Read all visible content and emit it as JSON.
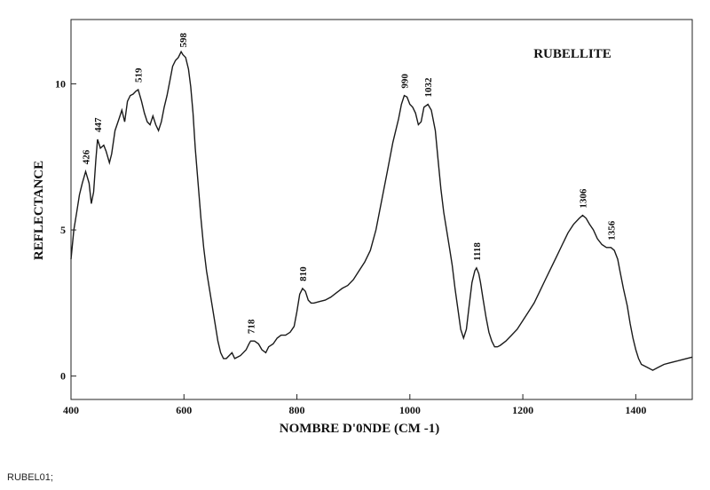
{
  "chart_data": {
    "type": "line",
    "title": "RUBELLITE",
    "xlabel": "NOMBRE D'0NDE (CM -1)",
    "ylabel": "REFLECTANCE",
    "xlim": [
      400,
      1500
    ],
    "ylim": [
      -0.8,
      12.2
    ],
    "xticks": [
      400,
      600,
      800,
      1000,
      1200,
      1400
    ],
    "yticks": [
      0,
      5,
      10
    ],
    "series": [
      {
        "color": "#1a1a1a",
        "points": [
          [
            400,
            4.0
          ],
          [
            405,
            5.0
          ],
          [
            410,
            5.6
          ],
          [
            415,
            6.2
          ],
          [
            420,
            6.6
          ],
          [
            426,
            7.0
          ],
          [
            432,
            6.6
          ],
          [
            436,
            5.9
          ],
          [
            440,
            6.3
          ],
          [
            444,
            7.4
          ],
          [
            447,
            8.1
          ],
          [
            452,
            7.8
          ],
          [
            458,
            7.9
          ],
          [
            462,
            7.7
          ],
          [
            468,
            7.3
          ],
          [
            472,
            7.6
          ],
          [
            478,
            8.4
          ],
          [
            485,
            8.8
          ],
          [
            490,
            9.1
          ],
          [
            495,
            8.7
          ],
          [
            500,
            9.4
          ],
          [
            505,
            9.6
          ],
          [
            510,
            9.65
          ],
          [
            515,
            9.75
          ],
          [
            519,
            9.8
          ],
          [
            525,
            9.4
          ],
          [
            530,
            9.0
          ],
          [
            535,
            8.7
          ],
          [
            540,
            8.6
          ],
          [
            545,
            8.9
          ],
          [
            550,
            8.6
          ],
          [
            555,
            8.4
          ],
          [
            560,
            8.7
          ],
          [
            565,
            9.2
          ],
          [
            570,
            9.6
          ],
          [
            575,
            10.1
          ],
          [
            580,
            10.6
          ],
          [
            585,
            10.8
          ],
          [
            590,
            10.9
          ],
          [
            595,
            11.1
          ],
          [
            598,
            11.0
          ],
          [
            603,
            10.9
          ],
          [
            608,
            10.5
          ],
          [
            612,
            9.9
          ],
          [
            616,
            9.0
          ],
          [
            620,
            7.8
          ],
          [
            625,
            6.6
          ],
          [
            630,
            5.4
          ],
          [
            635,
            4.4
          ],
          [
            640,
            3.6
          ],
          [
            645,
            3.0
          ],
          [
            650,
            2.4
          ],
          [
            655,
            1.8
          ],
          [
            660,
            1.2
          ],
          [
            665,
            0.8
          ],
          [
            670,
            0.6
          ],
          [
            675,
            0.6
          ],
          [
            680,
            0.7
          ],
          [
            685,
            0.8
          ],
          [
            690,
            0.6
          ],
          [
            695,
            0.65
          ],
          [
            700,
            0.7
          ],
          [
            705,
            0.8
          ],
          [
            710,
            0.9
          ],
          [
            715,
            1.1
          ],
          [
            718,
            1.2
          ],
          [
            725,
            1.2
          ],
          [
            732,
            1.1
          ],
          [
            738,
            0.9
          ],
          [
            745,
            0.8
          ],
          [
            750,
            1.0
          ],
          [
            758,
            1.1
          ],
          [
            765,
            1.3
          ],
          [
            772,
            1.4
          ],
          [
            780,
            1.4
          ],
          [
            788,
            1.5
          ],
          [
            795,
            1.7
          ],
          [
            800,
            2.2
          ],
          [
            805,
            2.8
          ],
          [
            810,
            3.0
          ],
          [
            815,
            2.9
          ],
          [
            820,
            2.6
          ],
          [
            825,
            2.5
          ],
          [
            830,
            2.5
          ],
          [
            840,
            2.55
          ],
          [
            850,
            2.6
          ],
          [
            860,
            2.7
          ],
          [
            870,
            2.85
          ],
          [
            880,
            3.0
          ],
          [
            890,
            3.1
          ],
          [
            900,
            3.3
          ],
          [
            910,
            3.6
          ],
          [
            920,
            3.9
          ],
          [
            930,
            4.3
          ],
          [
            940,
            5.0
          ],
          [
            950,
            6.0
          ],
          [
            960,
            7.0
          ],
          [
            970,
            8.0
          ],
          [
            980,
            8.8
          ],
          [
            985,
            9.3
          ],
          [
            990,
            9.6
          ],
          [
            995,
            9.55
          ],
          [
            1000,
            9.3
          ],
          [
            1005,
            9.2
          ],
          [
            1010,
            9.0
          ],
          [
            1015,
            8.6
          ],
          [
            1020,
            8.7
          ],
          [
            1025,
            9.2
          ],
          [
            1032,
            9.3
          ],
          [
            1038,
            9.1
          ],
          [
            1045,
            8.4
          ],
          [
            1050,
            7.4
          ],
          [
            1055,
            6.4
          ],
          [
            1060,
            5.6
          ],
          [
            1065,
            5.0
          ],
          [
            1070,
            4.4
          ],
          [
            1075,
            3.8
          ],
          [
            1080,
            3.0
          ],
          [
            1085,
            2.3
          ],
          [
            1090,
            1.6
          ],
          [
            1095,
            1.3
          ],
          [
            1100,
            1.6
          ],
          [
            1105,
            2.4
          ],
          [
            1110,
            3.2
          ],
          [
            1115,
            3.6
          ],
          [
            1118,
            3.7
          ],
          [
            1122,
            3.5
          ],
          [
            1125,
            3.2
          ],
          [
            1130,
            2.6
          ],
          [
            1135,
            2.0
          ],
          [
            1140,
            1.5
          ],
          [
            1145,
            1.2
          ],
          [
            1150,
            1.0
          ],
          [
            1155,
            1.0
          ],
          [
            1160,
            1.05
          ],
          [
            1170,
            1.2
          ],
          [
            1180,
            1.4
          ],
          [
            1190,
            1.6
          ],
          [
            1200,
            1.9
          ],
          [
            1210,
            2.2
          ],
          [
            1220,
            2.5
          ],
          [
            1230,
            2.9
          ],
          [
            1240,
            3.3
          ],
          [
            1250,
            3.7
          ],
          [
            1260,
            4.1
          ],
          [
            1270,
            4.5
          ],
          [
            1280,
            4.9
          ],
          [
            1290,
            5.2
          ],
          [
            1300,
            5.4
          ],
          [
            1306,
            5.5
          ],
          [
            1312,
            5.4
          ],
          [
            1318,
            5.2
          ],
          [
            1325,
            5.0
          ],
          [
            1332,
            4.7
          ],
          [
            1340,
            4.5
          ],
          [
            1348,
            4.4
          ],
          [
            1356,
            4.4
          ],
          [
            1362,
            4.3
          ],
          [
            1368,
            4.0
          ],
          [
            1372,
            3.6
          ],
          [
            1378,
            3.0
          ],
          [
            1385,
            2.4
          ],
          [
            1390,
            1.8
          ],
          [
            1395,
            1.3
          ],
          [
            1400,
            0.9
          ],
          [
            1405,
            0.6
          ],
          [
            1410,
            0.4
          ],
          [
            1420,
            0.3
          ],
          [
            1430,
            0.2
          ],
          [
            1440,
            0.3
          ],
          [
            1450,
            0.4
          ],
          [
            1460,
            0.45
          ],
          [
            1470,
            0.5
          ],
          [
            1480,
            0.55
          ],
          [
            1490,
            0.6
          ],
          [
            1500,
            0.65
          ]
        ]
      }
    ],
    "peak_labels": [
      {
        "x": 426,
        "y": 7.0,
        "text": "426"
      },
      {
        "x": 447,
        "y": 8.1,
        "text": "447"
      },
      {
        "x": 519,
        "y": 9.8,
        "text": "519"
      },
      {
        "x": 598,
        "y": 11.0,
        "text": "598"
      },
      {
        "x": 718,
        "y": 1.2,
        "text": "718"
      },
      {
        "x": 810,
        "y": 3.0,
        "text": "810"
      },
      {
        "x": 990,
        "y": 9.6,
        "text": "990"
      },
      {
        "x": 1032,
        "y": 9.3,
        "text": "1032"
      },
      {
        "x": 1118,
        "y": 3.7,
        "text": "1118"
      },
      {
        "x": 1306,
        "y": 5.5,
        "text": "1306"
      },
      {
        "x": 1356,
        "y": 4.4,
        "text": "1356"
      }
    ]
  },
  "footer": {
    "id": "RUBEL01;"
  }
}
